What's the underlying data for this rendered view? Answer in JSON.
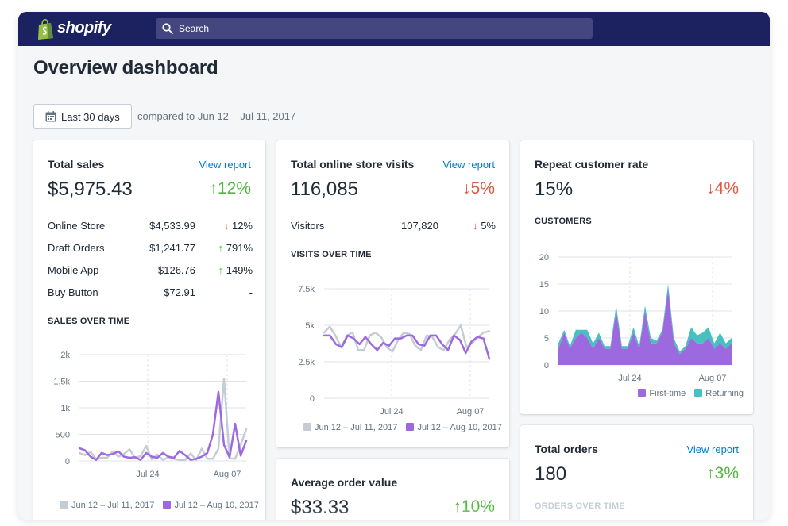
{
  "brand": {
    "name": "shopify"
  },
  "search": {
    "placeholder": "Search"
  },
  "page": {
    "title": "Overview dashboard"
  },
  "date_filter": {
    "label": "Last 30 days",
    "compare_text": "compared to Jun 12 – Jul 11, 2017"
  },
  "icons": {
    "search": "search-icon",
    "calendar": "calendar-icon",
    "logo": "shopify-bag-icon"
  },
  "colors": {
    "topbar": "#1c2260",
    "current": "#9c6ade",
    "previous": "#c4cdd5",
    "returning": "#47c1bf",
    "up": "#50b83c",
    "down": "#de5a42",
    "link": "#007ace"
  },
  "total_sales": {
    "title": "Total sales",
    "link": "View report",
    "value": "$5,975.43",
    "delta": "12%",
    "delta_dir": "up",
    "rows": [
      {
        "name": "Online Store",
        "value": "$4,533.99",
        "arrow": "↓",
        "delta": "12%",
        "dir": "down"
      },
      {
        "name": "Draft Orders",
        "value": "$1,241.77",
        "arrow": "↑",
        "delta": "791%",
        "dir": "up"
      },
      {
        "name": "Mobile App",
        "value": "$126.76",
        "arrow": "↑",
        "delta": "149%",
        "dir": "up"
      },
      {
        "name": "Buy Button",
        "value": "$72.91",
        "arrow": "",
        "delta": "-",
        "dir": "none"
      }
    ],
    "chart_title": "SALES OVER TIME"
  },
  "online_visits": {
    "title": "Total online store visits",
    "link": "View report",
    "value": "116,085",
    "delta": "5%",
    "delta_dir": "down",
    "rows": [
      {
        "name": "Visitors",
        "value": "107,820",
        "arrow": "↓",
        "delta": "5%",
        "dir": "down"
      }
    ],
    "chart_title": "VISITS OVER TIME"
  },
  "repeat_rate": {
    "title": "Repeat customer rate",
    "value": "15%",
    "delta": "4%",
    "delta_dir": "down",
    "chart_title": "CUSTOMERS"
  },
  "avg_order": {
    "title": "Average order value",
    "value": "$33.33",
    "delta": "10%",
    "delta_dir": "up"
  },
  "total_orders": {
    "title": "Total orders",
    "link": "View report",
    "value": "180",
    "delta": "3%",
    "delta_dir": "up",
    "chart_title": "ORDERS OVER TIME"
  },
  "chart_data": [
    {
      "type": "line",
      "name": "sales-over-time",
      "x_ticks": [
        "Jul 24",
        "Aug 07"
      ],
      "ylim": [
        0,
        2000
      ],
      "y_ticks": [
        "0",
        "500",
        "1k",
        "1.5k",
        "2k"
      ],
      "y_tick_values": [
        0,
        500,
        1000,
        1500,
        2000
      ],
      "grid": true,
      "legend_position": "bottom",
      "series": [
        {
          "name": "Jun 12 – Jul 11, 2017",
          "color": "#c4cdd5",
          "values": [
            150,
            110,
            170,
            30,
            60,
            60,
            180,
            80,
            130,
            220,
            60,
            90,
            280,
            30,
            120,
            20,
            70,
            40,
            20,
            20,
            140,
            20,
            230,
            40,
            40,
            230,
            1550,
            50,
            40,
            300,
            600
          ]
        },
        {
          "name": "Jul 12 – Aug 10, 2017",
          "color": "#9c6ade",
          "values": [
            240,
            200,
            80,
            20,
            150,
            110,
            130,
            180,
            80,
            60,
            70,
            20,
            150,
            80,
            60,
            150,
            80,
            60,
            190,
            110,
            20,
            40,
            80,
            150,
            500,
            1300,
            300,
            70,
            700,
            100,
            380
          ]
        }
      ]
    },
    {
      "type": "line",
      "name": "visits-over-time",
      "x_ticks": [
        "Jul 24",
        "Aug 07"
      ],
      "ylim": [
        0,
        7500
      ],
      "y_ticks": [
        "0",
        "2.5k",
        "5k",
        "7.5k"
      ],
      "y_tick_values": [
        0,
        2500,
        5000,
        7500
      ],
      "grid": true,
      "legend_position": "bottom",
      "series": [
        {
          "name": "Jun 12 – Jul 11, 2017",
          "color": "#c4cdd5",
          "values": [
            4500,
            4900,
            4300,
            3500,
            4300,
            4500,
            3300,
            3300,
            4300,
            4500,
            4200,
            3500,
            3200,
            4000,
            4500,
            4400,
            3600,
            3300,
            4300,
            4200,
            3500,
            3300,
            4000,
            4400,
            5000,
            3500,
            3800,
            4200,
            4500,
            4600
          ]
        },
        {
          "name": "Jul 12 – Aug 10, 2017",
          "color": "#9c6ade",
          "values": [
            4300,
            4300,
            3700,
            3500,
            4300,
            4100,
            3700,
            4200,
            3700,
            3300,
            3800,
            3600,
            4100,
            4100,
            4300,
            4300,
            3700,
            3600,
            4300,
            4300,
            3700,
            3300,
            4300,
            4000,
            3100,
            3900,
            4200,
            4100,
            2700
          ]
        }
      ]
    },
    {
      "type": "area",
      "name": "customers",
      "x_ticks": [
        "Jul 24",
        "Aug 07"
      ],
      "ylim": [
        0,
        20
      ],
      "y_ticks": [
        "0",
        "5",
        "10",
        "15",
        "20"
      ],
      "y_tick_values": [
        0,
        5,
        10,
        15,
        20
      ],
      "grid": true,
      "legend_position": "bottom-right",
      "stacked": true,
      "series": [
        {
          "name": "First-time",
          "color": "#9c6ade",
          "values": [
            3,
            6,
            3,
            5,
            6,
            5,
            3,
            5,
            3,
            3,
            10,
            3,
            3,
            6,
            3,
            10,
            4,
            4,
            6,
            14,
            4,
            2,
            3,
            5,
            4,
            4,
            5,
            3,
            4,
            3,
            4
          ]
        },
        {
          "name": "Returning",
          "color": "#47c1bf",
          "values": [
            1,
            0.5,
            0.5,
            1.5,
            0.5,
            1.5,
            1,
            1,
            0.5,
            0.5,
            1,
            0.5,
            0.5,
            1,
            0.5,
            1,
            1,
            0.5,
            0.5,
            1,
            1,
            0.5,
            0.5,
            2,
            1.5,
            2,
            2,
            1,
            2,
            1,
            1
          ]
        }
      ]
    }
  ],
  "legends": {
    "period_prev": "Jun 12 – Jul 11, 2017",
    "period_curr": "Jul 12 – Aug 10, 2017",
    "first_time": "First-time",
    "returning": "Returning"
  }
}
